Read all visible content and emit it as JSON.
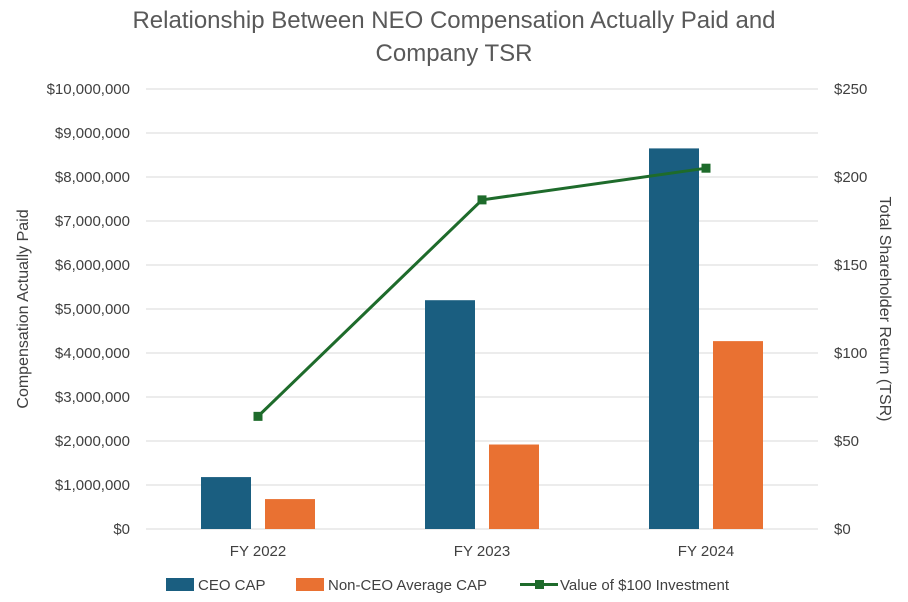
{
  "chart_data": {
    "type": "bar",
    "title_lines": [
      "Relationship Between NEO Compensation Actually Paid and",
      "Company TSR"
    ],
    "categories": [
      "FY 2022",
      "FY 2023",
      "FY 2024"
    ],
    "ylabel": "Compensation Actually Paid",
    "ylabel_right": "Total Shareholder Return (TSR)",
    "ylim": [
      0,
      10000000
    ],
    "ylim_right": [
      0,
      250
    ],
    "yticks": [
      "$0",
      "$1,000,000",
      "$2,000,000",
      "$3,000,000",
      "$4,000,000",
      "$5,000,000",
      "$6,000,000",
      "$7,000,000",
      "$8,000,000",
      "$9,000,000",
      "$10,000,000"
    ],
    "yticks_right": [
      "$0",
      "$50",
      "$100",
      "$150",
      "$200",
      "$250"
    ],
    "grid": true,
    "legend_position": "bottom",
    "series": [
      {
        "name": "CEO CAP",
        "type": "bar",
        "axis": "left",
        "color": "#1A5E80",
        "values": [
          1180000,
          5200000,
          8650000
        ]
      },
      {
        "name": "Non-CEO Average CAP",
        "type": "bar",
        "axis": "left",
        "color": "#E97132",
        "values": [
          680000,
          1920000,
          4270000
        ]
      },
      {
        "name": "Value of $100 Investment",
        "type": "line",
        "axis": "right",
        "color": "#1E6B2B",
        "values": [
          64,
          187,
          205
        ]
      }
    ]
  }
}
